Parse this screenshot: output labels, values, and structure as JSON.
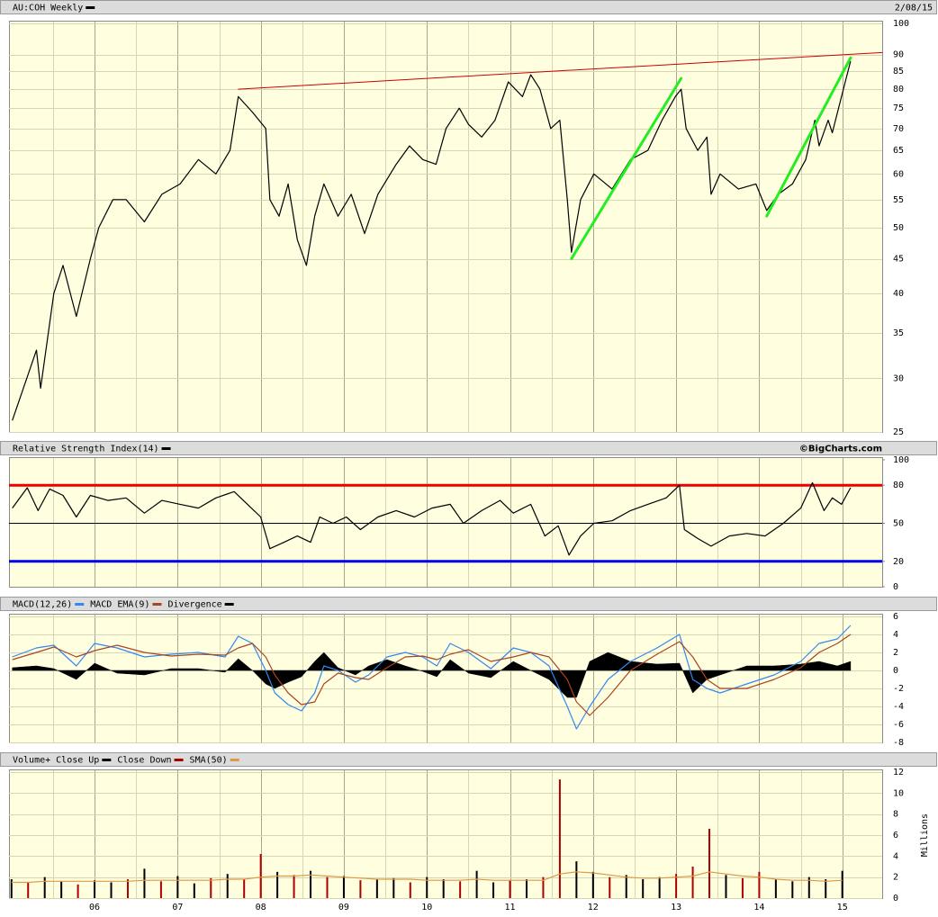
{
  "chart_data": [
    {
      "type": "line",
      "title": "AU:COH Weekly",
      "date": "2/08/15",
      "log": true,
      "grid": true,
      "color": "#000000",
      "xlim": [
        2004.97,
        2015.48
      ],
      "xticks": [
        2006,
        2007,
        2008,
        2009,
        2010,
        2011,
        2012,
        2013,
        2014,
        2015
      ],
      "ylim": [
        25,
        100
      ],
      "yticks": [
        25,
        30,
        35,
        40,
        45,
        50,
        55,
        60,
        65,
        70,
        75,
        80,
        85,
        90,
        100
      ],
      "x": [
        2005.01,
        2005.3,
        2005.35,
        2005.51,
        2005.62,
        2005.78,
        2005.95,
        2006.05,
        2006.22,
        2006.38,
        2006.6,
        2006.81,
        2007.03,
        2007.25,
        2007.46,
        2007.63,
        2007.73,
        2007.9,
        2008.06,
        2008.11,
        2008.22,
        2008.33,
        2008.44,
        2008.55,
        2008.65,
        2008.76,
        2008.93,
        2009.09,
        2009.25,
        2009.41,
        2009.63,
        2009.79,
        2009.95,
        2010.11,
        2010.23,
        2010.39,
        2010.5,
        2010.66,
        2010.82,
        2010.98,
        2011.15,
        2011.25,
        2011.36,
        2011.49,
        2011.6,
        2011.69,
        2011.74,
        2011.85,
        2012.01,
        2012.23,
        2012.45,
        2012.66,
        2012.83,
        2012.99,
        2013.06,
        2013.12,
        2013.26,
        2013.37,
        2013.42,
        2013.53,
        2013.75,
        2013.96,
        2014.09,
        2014.23,
        2014.4,
        2014.56,
        2014.67,
        2014.72,
        2014.83,
        2014.88,
        2014.99,
        2015.1
      ],
      "values": [
        26,
        33,
        29,
        40,
        44,
        37,
        45,
        50,
        55,
        55,
        51,
        56,
        58,
        63,
        60,
        65,
        78,
        74,
        70,
        55,
        52,
        58,
        48,
        44,
        52,
        58,
        52,
        56,
        49,
        56,
        62,
        66,
        63,
        62,
        70,
        75,
        71,
        68,
        72,
        82,
        78,
        84,
        80,
        70,
        72,
        55,
        46,
        55,
        60,
        57,
        63,
        65,
        72,
        78,
        80,
        70,
        65,
        68,
        56,
        60,
        57,
        58,
        53,
        56,
        58,
        63,
        72,
        66,
        72,
        69,
        78,
        88
      ],
      "trendlines": [
        {
          "color": "#cc0000",
          "width": 1,
          "x": [
            2007.73,
            2015.48
          ],
          "y": [
            80,
            90.6
          ]
        },
        {
          "color": "#22ee22",
          "width": 3,
          "x": [
            2011.74,
            2013.06
          ],
          "y": [
            45,
            83
          ]
        },
        {
          "color": "#22ee22",
          "width": 3,
          "x": [
            2014.09,
            2015.1
          ],
          "y": [
            52,
            89
          ]
        }
      ]
    },
    {
      "type": "line",
      "title": "Relative Strength Index(14)",
      "credit": "©BigCharts.com",
      "grid": false,
      "color": "#000000",
      "xlim": [
        2004.97,
        2015.48
      ],
      "xticks": [
        2006,
        2007,
        2008,
        2009,
        2010,
        2011,
        2012,
        2013,
        2014,
        2015
      ],
      "ylim": [
        0,
        100
      ],
      "yticks": [
        0,
        20,
        50,
        80,
        100
      ],
      "hlines": [
        {
          "value": 80,
          "color": "#ee0000",
          "width": 3
        },
        {
          "value": 50,
          "color": "#000000",
          "width": 1
        },
        {
          "value": 20,
          "color": "#0000ee",
          "width": 3
        }
      ],
      "x": [
        2005.01,
        2005.19,
        2005.32,
        2005.46,
        2005.62,
        2005.78,
        2005.95,
        2006.16,
        2006.38,
        2006.6,
        2006.81,
        2007.03,
        2007.25,
        2007.46,
        2007.68,
        2007.84,
        2008.0,
        2008.11,
        2008.28,
        2008.44,
        2008.6,
        2008.71,
        2008.87,
        2009.03,
        2009.2,
        2009.41,
        2009.63,
        2009.85,
        2010.06,
        2010.28,
        2010.44,
        2010.66,
        2010.88,
        2011.04,
        2011.25,
        2011.42,
        2011.58,
        2011.71,
        2011.85,
        2012.01,
        2012.23,
        2012.45,
        2012.66,
        2012.88,
        2013.04,
        2013.1,
        2013.26,
        2013.42,
        2013.64,
        2013.85,
        2014.07,
        2014.29,
        2014.5,
        2014.64,
        2014.78,
        2014.88,
        2014.99,
        2015.1
      ],
      "values": [
        62,
        78,
        60,
        77,
        72,
        55,
        72,
        68,
        70,
        58,
        68,
        65,
        62,
        70,
        75,
        65,
        55,
        30,
        35,
        40,
        35,
        55,
        50,
        55,
        45,
        55,
        60,
        55,
        62,
        65,
        50,
        60,
        68,
        58,
        65,
        40,
        48,
        25,
        40,
        50,
        52,
        60,
        65,
        70,
        80,
        45,
        38,
        32,
        40,
        42,
        40,
        50,
        62,
        82,
        60,
        70,
        65,
        78
      ]
    },
    {
      "type": "line",
      "grid": true,
      "xlim": [
        2004.97,
        2015.48
      ],
      "xticks": [
        2006,
        2007,
        2008,
        2009,
        2010,
        2011,
        2012,
        2013,
        2014,
        2015
      ],
      "ylim": [
        -8,
        6
      ],
      "yticks": [
        -8,
        -6,
        -4,
        -2,
        0,
        2,
        4,
        6
      ],
      "x": [
        2005.01,
        2005.3,
        2005.51,
        2005.78,
        2006.0,
        2006.27,
        2006.6,
        2006.92,
        2007.25,
        2007.57,
        2007.73,
        2007.9,
        2008.06,
        2008.17,
        2008.33,
        2008.49,
        2008.65,
        2008.76,
        2008.93,
        2009.14,
        2009.3,
        2009.52,
        2009.74,
        2009.95,
        2010.12,
        2010.28,
        2010.5,
        2010.77,
        2011.04,
        2011.25,
        2011.47,
        2011.69,
        2011.8,
        2011.96,
        2012.18,
        2012.45,
        2012.77,
        2013.04,
        2013.2,
        2013.37,
        2013.53,
        2013.85,
        2014.18,
        2014.5,
        2014.72,
        2014.94,
        2015.1
      ],
      "series": [
        {
          "name": "MACD(12,26)",
          "color": "#3388ee",
          "type": "line",
          "values": [
            1.5,
            2.5,
            2.8,
            0.5,
            3.0,
            2.5,
            1.5,
            1.8,
            2.0,
            1.5,
            3.8,
            3.0,
            0,
            -2.5,
            -3.8,
            -4.5,
            -2.5,
            0.5,
            0,
            -1.3,
            -0.5,
            1.5,
            2.0,
            1.5,
            0.5,
            3.0,
            2.0,
            0.2,
            2.5,
            2.0,
            0.5,
            -4,
            -6.5,
            -4,
            -1,
            1.0,
            2.5,
            4,
            -1,
            -2,
            -2.5,
            -1.5,
            -0.5,
            1,
            3,
            3.5,
            5
          ]
        },
        {
          "name": "MACD EMA(9)",
          "color": "#aa4422",
          "type": "line",
          "values": [
            1.2,
            2.0,
            2.6,
            1.5,
            2.2,
            2.8,
            2.0,
            1.6,
            1.8,
            1.7,
            2.5,
            3.0,
            1.5,
            -0.5,
            -2.5,
            -3.8,
            -3.5,
            -1.5,
            -0.3,
            -0.8,
            -1.0,
            0.3,
            1.5,
            1.6,
            1.2,
            1.8,
            2.3,
            1.0,
            1.5,
            2.0,
            1.5,
            -1,
            -3.5,
            -5,
            -3,
            0,
            1.8,
            3.2,
            1.5,
            -1,
            -2,
            -2,
            -1,
            0.3,
            2,
            3,
            4
          ]
        },
        {
          "name": "Divergence",
          "color": "#000000",
          "type": "area",
          "values": [
            0.3,
            0.5,
            0.2,
            -1,
            0.8,
            -0.3,
            -0.5,
            0.2,
            0.2,
            -0.2,
            1.3,
            0,
            -1.5,
            -2,
            -1.3,
            -0.7,
            1,
            2,
            0.3,
            -0.5,
            0.5,
            1.2,
            0.5,
            -0.1,
            -0.7,
            1.2,
            -0.3,
            -0.8,
            1,
            0,
            -1,
            -3,
            -3,
            1,
            2,
            1,
            0.7,
            0.8,
            -2.5,
            -1,
            -0.5,
            0.5,
            0.5,
            0.7,
            1,
            0.5,
            1
          ]
        }
      ]
    },
    {
      "type": "bar",
      "title": "Volume+",
      "ylabel": "Millions",
      "grid": true,
      "xlim": [
        2004.97,
        2015.48
      ],
      "xticks": [
        {
          "value": 2006,
          "label": "06"
        },
        {
          "value": 2007,
          "label": "07"
        },
        {
          "value": 2008,
          "label": "08"
        },
        {
          "value": 2009,
          "label": "09"
        },
        {
          "value": 2010,
          "label": "10"
        },
        {
          "value": 2011,
          "label": "11"
        },
        {
          "value": 2012,
          "label": "12"
        },
        {
          "value": 2013,
          "label": "13"
        },
        {
          "value": 2014,
          "label": "14"
        },
        {
          "value": 2015,
          "label": "15"
        }
      ],
      "ylim": [
        0,
        12
      ],
      "yticks": [
        0,
        2,
        4,
        6,
        8,
        10,
        12
      ],
      "x": [
        2005.0,
        2005.2,
        2005.4,
        2005.6,
        2005.8,
        2006.0,
        2006.2,
        2006.4,
        2006.6,
        2006.8,
        2007.0,
        2007.2,
        2007.4,
        2007.6,
        2007.8,
        2008.0,
        2008.2,
        2008.4,
        2008.6,
        2008.8,
        2009.0,
        2009.2,
        2009.4,
        2009.6,
        2009.8,
        2010.0,
        2010.2,
        2010.4,
        2010.6,
        2010.8,
        2011.0,
        2011.2,
        2011.4,
        2011.6,
        2011.8,
        2012.0,
        2012.2,
        2012.4,
        2012.6,
        2012.8,
        2013.0,
        2013.2,
        2013.4,
        2013.6,
        2013.8,
        2014.0,
        2014.2,
        2014.4,
        2014.6,
        2014.8,
        2015.0
      ],
      "series": [
        {
          "name": "Close Up",
          "color": "#000000",
          "type": "bar",
          "values": [
            1.8,
            null,
            2.0,
            1.6,
            null,
            1.7,
            1.5,
            null,
            2.8,
            null,
            2.1,
            1.4,
            null,
            2.3,
            null,
            null,
            2.5,
            null,
            2.6,
            null,
            2.1,
            null,
            1.8,
            1.9,
            null,
            2.0,
            1.8,
            null,
            2.6,
            1.5,
            null,
            1.8,
            null,
            null,
            3.5,
            2.5,
            null,
            2.2,
            1.8,
            2.0,
            null,
            null,
            null,
            2.2,
            null,
            null,
            1.8,
            1.6,
            2.0,
            1.8,
            2.6
          ]
        },
        {
          "name": "Close Down",
          "color": "#aa0000",
          "type": "bar",
          "values": [
            null,
            1.5,
            null,
            null,
            1.3,
            null,
            null,
            1.8,
            null,
            1.6,
            null,
            null,
            1.9,
            null,
            1.8,
            4.2,
            null,
            2.2,
            null,
            2.0,
            null,
            1.7,
            null,
            null,
            1.5,
            null,
            null,
            1.6,
            null,
            null,
            1.7,
            null,
            2.0,
            11.3,
            null,
            null,
            2.0,
            null,
            null,
            null,
            2.3,
            3.0,
            6.6,
            null,
            1.9,
            2.5,
            null,
            null,
            null,
            null,
            null
          ]
        },
        {
          "name": "SMA(50)",
          "color": "#dd9944",
          "type": "line",
          "values": [
            1.5,
            1.5,
            1.6,
            1.6,
            1.6,
            1.6,
            1.6,
            1.6,
            1.7,
            1.7,
            1.7,
            1.7,
            1.7,
            1.8,
            1.8,
            2.0,
            2.1,
            2.1,
            2.2,
            2.1,
            2.0,
            1.9,
            1.8,
            1.8,
            1.8,
            1.7,
            1.7,
            1.7,
            1.8,
            1.7,
            1.7,
            1.7,
            1.7,
            2.3,
            2.5,
            2.4,
            2.2,
            2.0,
            1.9,
            1.9,
            2.0,
            2.1,
            2.5,
            2.3,
            2.1,
            2.0,
            1.8,
            1.7,
            1.7,
            1.6,
            1.7
          ]
        }
      ]
    }
  ]
}
